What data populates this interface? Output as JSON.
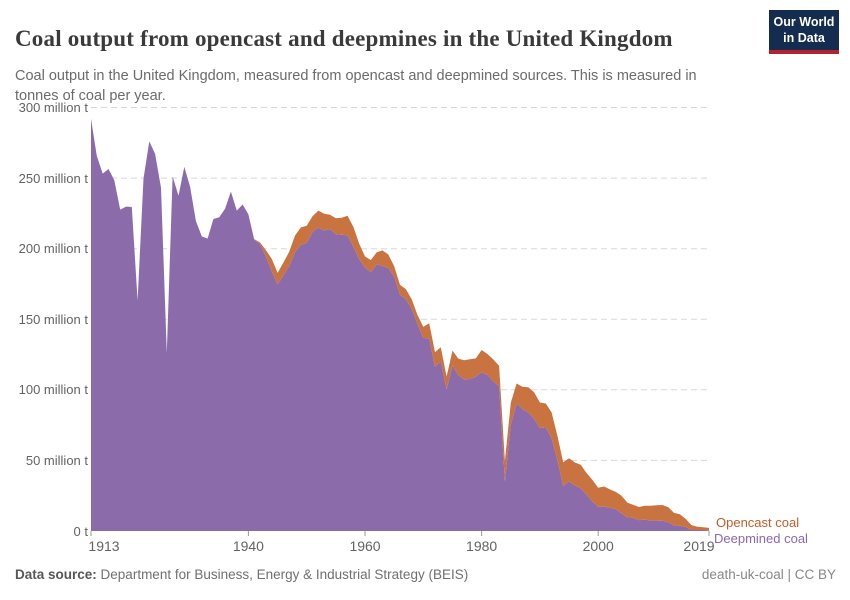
{
  "header": {
    "title": "Coal output from opencast and deepmines in the United Kingdom",
    "subtitle": "Coal output in the United Kingdom, measured from opencast and deepmined sources. This is measured in tonnes of coal per year.",
    "logo": {
      "line1": "Our World",
      "line2": "in Data"
    }
  },
  "legend": {
    "opencast": "Opencast coal",
    "deepmined": "Deepmined coal"
  },
  "footer": {
    "source_label": "Data source:",
    "source_value": "Department for Business, Energy & Industrial Strategy (BEIS)",
    "credit": "death-uk-coal | CC BY"
  },
  "colors": {
    "deepmined_area": "#8c6bab",
    "opencast_area": "#c97440",
    "deepmined_label": "#8a67b4",
    "opencast_label": "#c05e2a",
    "gridline": "#d8d8d8",
    "tick": "#999999",
    "logo_bg": "#132c4f",
    "logo_red": "#b22230"
  },
  "chart_data": {
    "type": "area",
    "stacked": true,
    "title": "Coal output from opencast and deepmines in the United Kingdom",
    "unit": "million tonnes of coal per year",
    "grid": "horizontal dashed",
    "legend_position": "right of plot end",
    "ylim": [
      0,
      300
    ],
    "xlim": [
      1913,
      2019
    ],
    "y_ticks": [
      {
        "value": 0,
        "label": "0 t"
      },
      {
        "value": 50,
        "label": "50 million t"
      },
      {
        "value": 100,
        "label": "100 million t"
      },
      {
        "value": 150,
        "label": "150 million t"
      },
      {
        "value": 200,
        "label": "200 million t"
      },
      {
        "value": 250,
        "label": "250 million t"
      },
      {
        "value": 300,
        "label": "300 million t"
      }
    ],
    "x_ticks": [
      {
        "value": 1913,
        "label": "1913"
      },
      {
        "value": 1940,
        "label": "1940"
      },
      {
        "value": 1960,
        "label": "1960"
      },
      {
        "value": 1980,
        "label": "1980"
      },
      {
        "value": 2000,
        "label": "2000"
      },
      {
        "value": 2019,
        "label": "2019"
      }
    ],
    "x": [
      1913,
      1914,
      1915,
      1916,
      1917,
      1918,
      1919,
      1920,
      1921,
      1922,
      1923,
      1924,
      1925,
      1926,
      1927,
      1928,
      1929,
      1930,
      1931,
      1932,
      1933,
      1934,
      1935,
      1936,
      1937,
      1938,
      1939,
      1940,
      1941,
      1942,
      1943,
      1944,
      1945,
      1946,
      1947,
      1948,
      1949,
      1950,
      1951,
      1952,
      1953,
      1954,
      1955,
      1956,
      1957,
      1958,
      1959,
      1960,
      1961,
      1962,
      1963,
      1964,
      1965,
      1966,
      1967,
      1968,
      1969,
      1970,
      1971,
      1972,
      1973,
      1974,
      1975,
      1976,
      1977,
      1978,
      1979,
      1980,
      1981,
      1982,
      1983,
      1984,
      1985,
      1986,
      1987,
      1988,
      1989,
      1990,
      1991,
      1992,
      1993,
      1994,
      1995,
      1996,
      1997,
      1998,
      1999,
      2000,
      2001,
      2002,
      2003,
      2004,
      2005,
      2006,
      2007,
      2008,
      2009,
      2010,
      2011,
      2012,
      2013,
      2014,
      2015,
      2016,
      2017,
      2018,
      2019
    ],
    "series": [
      {
        "name": "Deepmined coal",
        "color": "#8c6bab",
        "values": [
          292.0,
          265.7,
          253.2,
          256.4,
          248.5,
          227.7,
          229.8,
          229.5,
          163.3,
          249.6,
          276.0,
          267.1,
          243.2,
          126.3,
          251.2,
          237.5,
          257.9,
          243.9,
          219.6,
          208.7,
          207.1,
          221.0,
          222.3,
          228.4,
          240.4,
          227.0,
          231.3,
          224.3,
          206.3,
          203.1,
          194.5,
          184.1,
          174.7,
          181.2,
          187.5,
          197.7,
          202.7,
          204.1,
          211.9,
          214.9,
          212.9,
          213.9,
          210.2,
          209.9,
          209.5,
          201.4,
          192.6,
          186.8,
          183.2,
          188.9,
          187.7,
          186.4,
          180.1,
          167.3,
          164.3,
          157.4,
          146.7,
          136.7,
          136.5,
          116.3,
          120.0,
          100.3,
          117.4,
          110.3,
          107.4,
          107.7,
          109.3,
          112.4,
          110.5,
          106.2,
          102.4,
          35.2,
          75.3,
          90.4,
          86.4,
          84.0,
          79.6,
          72.9,
          73.4,
          65.8,
          50.5,
          31.9,
          35.2,
          32.2,
          30.3,
          25.7,
          20.9,
          17.2,
          17.3,
          16.4,
          15.6,
          12.5,
          9.6,
          9.4,
          7.7,
          8.1,
          7.4,
          7.4,
          7.2,
          6.2,
          4.1,
          3.6,
          2.8,
          0.7,
          0.7,
          0.7,
          0.5
        ]
      },
      {
        "name": "Opencast coal",
        "color": "#c97440",
        "values": [
          0,
          0,
          0,
          0,
          0,
          0,
          0,
          0,
          0,
          0,
          0,
          0,
          0,
          0,
          0,
          0,
          0,
          0,
          0,
          0,
          0,
          0,
          0,
          0,
          0,
          0,
          0,
          0,
          0.5,
          1.3,
          4.5,
          8.7,
          8.1,
          8.9,
          10.3,
          11.7,
          12.4,
          12.2,
          11.0,
          12.1,
          11.8,
          10.1,
          11.4,
          12.0,
          13.8,
          14.0,
          10.9,
          7.7,
          8.7,
          8.5,
          11.1,
          9.5,
          7.4,
          7.0,
          7.1,
          6.7,
          6.3,
          7.9,
          10.6,
          10.4,
          10.1,
          9.1,
          10.4,
          11.8,
          13.6,
          14.0,
          13.0,
          15.8,
          14.9,
          15.3,
          14.6,
          14.3,
          15.6,
          14.1,
          15.8,
          17.9,
          18.7,
          18.1,
          16.9,
          18.2,
          17.0,
          16.8,
          16.4,
          16.3,
          16.7,
          15.3,
          15.3,
          13.4,
          14.2,
          13.1,
          12.1,
          12.5,
          10.5,
          9.1,
          9.3,
          9.8,
          10.5,
          10.9,
          11.2,
          10.7,
          8.7,
          8.3,
          5.8,
          3.5,
          2.3,
          1.9,
          1.7
        ]
      }
    ]
  }
}
